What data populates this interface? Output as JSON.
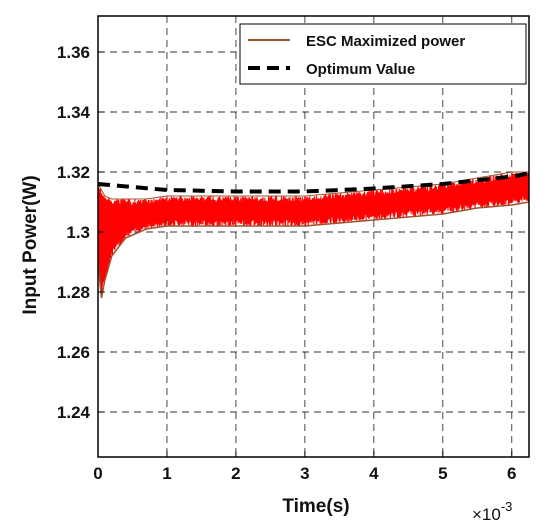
{
  "chart_data": {
    "type": "line",
    "xlabel": "Time(s)",
    "ylabel": "Input Power(W)",
    "x_multiplier_label": "×10",
    "x_multiplier_exp": "-3",
    "xlim": [
      0,
      6.25
    ],
    "ylim": [
      1.225,
      1.372
    ],
    "x_ticks": [
      0,
      1,
      2,
      3,
      4,
      5,
      6
    ],
    "y_ticks": [
      1.24,
      1.26,
      1.28,
      1.3,
      1.32,
      1.34,
      1.36
    ],
    "x_tick_labels": [
      "0",
      "1",
      "2",
      "3",
      "4",
      "5",
      "6"
    ],
    "y_tick_labels": [
      "1.24",
      "1.26",
      "1.28",
      "1.3",
      "1.32",
      "1.34",
      "1.36"
    ],
    "grid": true,
    "legend_position": "top-right",
    "series": [
      {
        "name": "ESC Maximized power",
        "color": "#a0522d",
        "style": "oscillating band",
        "x": [
          0,
          0.05,
          0.1,
          0.2,
          0.4,
          0.7,
          1.0,
          1.5,
          2.0,
          2.5,
          3.0,
          3.5,
          4.0,
          4.5,
          5.0,
          5.5,
          6.0,
          6.25
        ],
        "upper": [
          1.316,
          1.314,
          1.312,
          1.311,
          1.311,
          1.311,
          1.312,
          1.312,
          1.312,
          1.312,
          1.312,
          1.313,
          1.314,
          1.315,
          1.316,
          1.318,
          1.32,
          1.32
        ],
        "lower": [
          1.29,
          1.278,
          1.284,
          1.292,
          1.298,
          1.301,
          1.302,
          1.302,
          1.302,
          1.302,
          1.302,
          1.303,
          1.304,
          1.305,
          1.306,
          1.308,
          1.309,
          1.31
        ]
      },
      {
        "name": "Optimum Value",
        "color": "#000000",
        "style": "dashed",
        "x": [
          0,
          1,
          2,
          3,
          4,
          5,
          6,
          6.25
        ],
        "y": [
          1.316,
          1.314,
          1.3135,
          1.3135,
          1.3145,
          1.316,
          1.3185,
          1.3195
        ]
      }
    ],
    "band_color": "#ff0000"
  }
}
